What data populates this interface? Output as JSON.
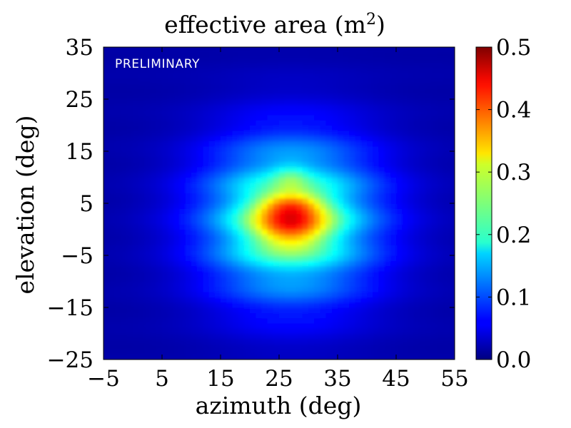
{
  "chart_data": {
    "type": "heatmap",
    "title": "effective area (m",
    "title_superscript": "2",
    "title_suffix": ")",
    "xlabel": "azimuth (deg)",
    "ylabel": "elevation (deg)",
    "xlim": [
      -5,
      55
    ],
    "ylim": [
      -25,
      35
    ],
    "xticks": [
      -5,
      5,
      15,
      25,
      35,
      45,
      55
    ],
    "yticks": [
      -25,
      -15,
      -5,
      5,
      15,
      25,
      35
    ],
    "xtick_labels": [
      "−5",
      "5",
      "15",
      "25",
      "35",
      "45",
      "55"
    ],
    "ytick_labels": [
      "−25",
      "−15",
      "−5",
      "5",
      "15",
      "25",
      "35"
    ],
    "colorbar": {
      "min": 0.0,
      "max": 0.5,
      "ticks": [
        0.0,
        0.1,
        0.2,
        0.3,
        0.4,
        0.5
      ],
      "tick_labels": [
        "0.0",
        "0.1",
        "0.2",
        "0.3",
        "0.4",
        "0.5"
      ],
      "colormap": "jet"
    },
    "annotation": "PRELIMINARY",
    "peak": {
      "azimuth": 27,
      "elevation": 1,
      "value": 0.45
    },
    "secondary_peak": {
      "azimuth": 27,
      "elevation": 5,
      "value": 0.4
    },
    "azimuth_half_width": 19,
    "elevation_half_width": 20,
    "floor_value": 0.02
  }
}
